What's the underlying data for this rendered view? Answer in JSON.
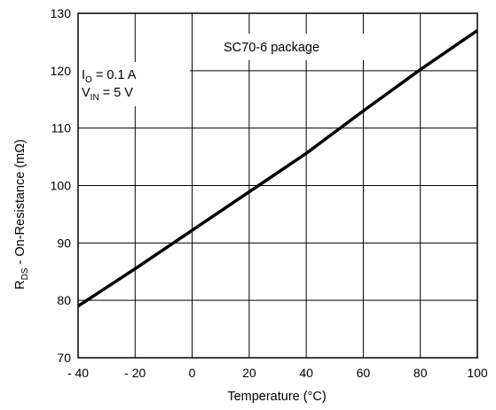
{
  "chart_data": {
    "type": "line",
    "title": "",
    "xlabel": "Temperature (°C)",
    "ylabel": {
      "main": "R",
      "sub": "DS",
      "rest": " - On-Resistance (mΩ)"
    },
    "xlim": [
      -40,
      100
    ],
    "ylim": [
      70,
      130
    ],
    "x_ticks": [
      -40,
      -20,
      0,
      20,
      40,
      60,
      80,
      100
    ],
    "x_tick_labels": [
      "- 40",
      "- 20",
      "0",
      "20",
      "40",
      "60",
      "80",
      "100"
    ],
    "y_ticks": [
      70,
      80,
      90,
      100,
      110,
      120,
      130
    ],
    "y_tick_labels": [
      "70",
      "80",
      "90",
      "100",
      "110",
      "120",
      "130"
    ],
    "grid": true,
    "series": [
      {
        "x": [
          -40,
          -20,
          0,
          20,
          40,
          60,
          80,
          100
        ],
        "y": [
          79,
          85.5,
          92.2,
          98.9,
          105.6,
          113,
          120.2,
          127
        ],
        "color": "#000000"
      }
    ],
    "annotations": {
      "package": "SC70-6 package",
      "io": {
        "main": "I",
        "sub": "O",
        "rest": " = 0.1 A"
      },
      "vin": {
        "main": "V",
        "sub": "IN",
        "rest": " = 5 V"
      }
    }
  }
}
